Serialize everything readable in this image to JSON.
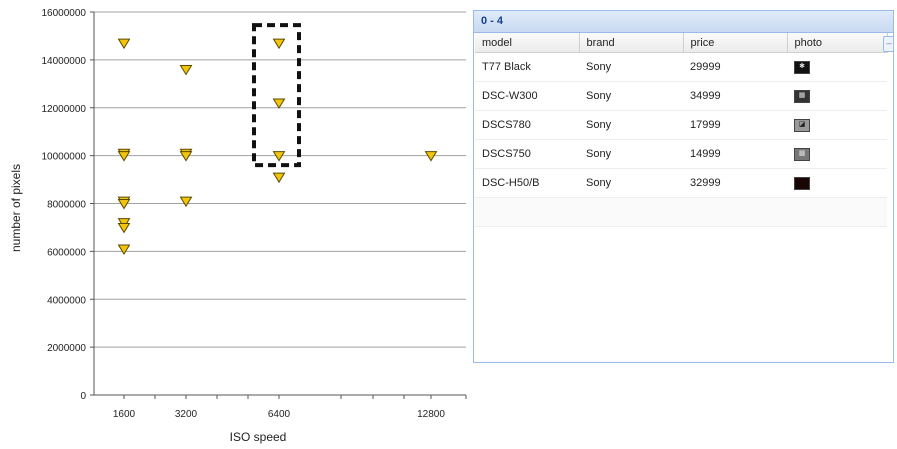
{
  "chart_data": {
    "type": "scatter",
    "xlabel": "ISO speed",
    "ylabel": "number of pixels",
    "xticks": [
      "1600",
      "3200",
      "6400",
      "12800"
    ],
    "yticks": [
      "0",
      "2000000",
      "4000000",
      "6000000",
      "8000000",
      "10000000",
      "12000000",
      "14000000",
      "16000000"
    ],
    "ylim": [
      0,
      16000000
    ],
    "grid": "horizontal",
    "marker": "downward-triangle",
    "marker_color": "#f2c40e",
    "series": [
      {
        "points": [
          {
            "x": 1600,
            "y": 14700000
          },
          {
            "x": 1600,
            "y": 10100000
          },
          {
            "x": 1600,
            "y": 10000000
          },
          {
            "x": 1600,
            "y": 8100000
          },
          {
            "x": 1600,
            "y": 8000000
          },
          {
            "x": 1600,
            "y": 7200000
          },
          {
            "x": 1600,
            "y": 7000000
          },
          {
            "x": 1600,
            "y": 6100000
          },
          {
            "x": 3200,
            "y": 13600000
          },
          {
            "x": 3200,
            "y": 10100000
          },
          {
            "x": 3200,
            "y": 10000000
          },
          {
            "x": 3200,
            "y": 8100000
          },
          {
            "x": 6400,
            "y": 14700000
          },
          {
            "x": 6400,
            "y": 12200000
          },
          {
            "x": 6400,
            "y": 10000000
          },
          {
            "x": 6400,
            "y": 9100000
          },
          {
            "x": 12800,
            "y": 10000000
          }
        ]
      }
    ],
    "selection": {
      "style": "dashed-box",
      "x": 6400,
      "y_range": [
        9100000,
        14700000
      ]
    }
  },
  "grid_panel": {
    "title": "0 - 4",
    "columns": [
      "model",
      "brand",
      "price",
      "photo"
    ],
    "rows": [
      {
        "model": "T77 Black",
        "brand": "Sony",
        "price": "29999",
        "photo": "thumbnail"
      },
      {
        "model": "DSC-W300",
        "brand": "Sony",
        "price": "34999",
        "photo": "thumbnail"
      },
      {
        "model": "DSCS780",
        "brand": "Sony",
        "price": "17999",
        "photo": "thumbnail"
      },
      {
        "model": "DSCS750",
        "brand": "Sony",
        "price": "14999",
        "photo": "thumbnail"
      },
      {
        "model": "DSC-H50/B",
        "brand": "Sony",
        "price": "32999",
        "photo": "thumbnail"
      }
    ]
  }
}
